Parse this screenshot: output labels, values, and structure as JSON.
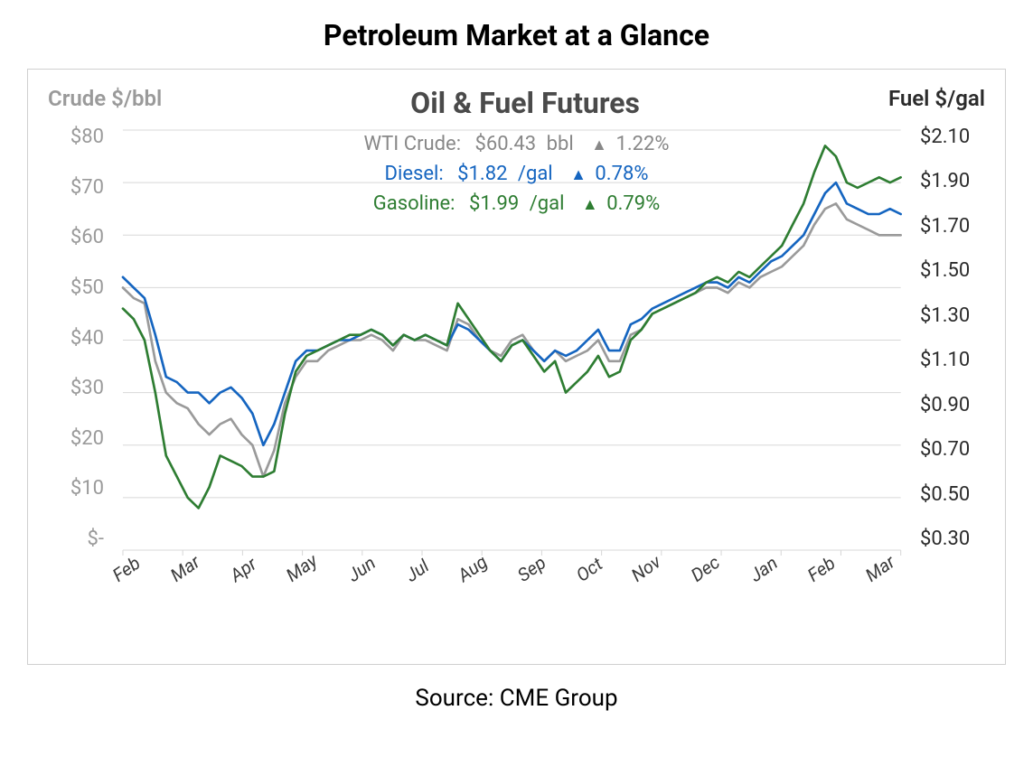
{
  "title": "Petroleum Market at a Glance",
  "source": "Source: CME Group",
  "chart": {
    "type": "line",
    "title": "Oil & Fuel Futures",
    "left_axis": {
      "label": "Crude $/bbl",
      "color": "#9a9a9a",
      "ticks": [
        "$80",
        "$70",
        "$60",
        "$50",
        "$40",
        "$30",
        "$20",
        "$10",
        "$-"
      ],
      "min": 0,
      "max": 80,
      "step": 10
    },
    "right_axis": {
      "label": "Fuel $/gal",
      "color": "#2b2b2b",
      "ticks": [
        "$2.10",
        "$1.90",
        "$1.70",
        "$1.50",
        "$1.30",
        "$1.10",
        "$0.90",
        "$0.70",
        "$0.50",
        "$0.30"
      ],
      "min": 0.3,
      "max": 2.1,
      "step": 0.2
    },
    "x_axis": {
      "ticks": [
        "Feb",
        "Mar",
        "Apr",
        "May",
        "Jun",
        "Jul",
        "Aug",
        "Sep",
        "Oct",
        "Nov",
        "Dec",
        "Jan",
        "Feb",
        "Mar"
      ],
      "color": "#3a3a3a"
    },
    "grid_color": "#d8d8d8",
    "background_color": "#ffffff",
    "border_color": "#d0d0d0",
    "line_width": 2.6,
    "series": {
      "wti": {
        "label": "WTI Crude:",
        "value": "$60.43",
        "unit": "bbl",
        "pct": "1.22%",
        "direction": "up",
        "color": "#9a9a9a",
        "data_left_axis": [
          50,
          48,
          47,
          36,
          30,
          28,
          27,
          24,
          22,
          24,
          25,
          22,
          20,
          14,
          19,
          28,
          33,
          36,
          36,
          38,
          39,
          40,
          40,
          41,
          40,
          38,
          41,
          40,
          40,
          39,
          38,
          44,
          43,
          40,
          38,
          37,
          40,
          41,
          38,
          36,
          38,
          36,
          37,
          38,
          40,
          36,
          36,
          41,
          42,
          45,
          46,
          47,
          48,
          49,
          50,
          50,
          49,
          51,
          50,
          52,
          53,
          54,
          56,
          58,
          62,
          65,
          66,
          63,
          62,
          61,
          60,
          60,
          60
        ]
      },
      "diesel": {
        "label": "Diesel:",
        "value": "$1.82",
        "unit": "/gal",
        "pct": "0.78%",
        "direction": "up",
        "color": "#1565c0",
        "data_left_axis": [
          52,
          50,
          48,
          41,
          33,
          32,
          30,
          30,
          28,
          30,
          31,
          29,
          26,
          20,
          24,
          30,
          36,
          38,
          38,
          39,
          40,
          40,
          41,
          42,
          41,
          39,
          41,
          40,
          41,
          40,
          39,
          43,
          42,
          40,
          38,
          36,
          39,
          40,
          38,
          36,
          38,
          37,
          38,
          40,
          42,
          38,
          38,
          43,
          44,
          46,
          47,
          48,
          49,
          50,
          51,
          51,
          50,
          52,
          51,
          53,
          55,
          56,
          58,
          60,
          64,
          68,
          70,
          66,
          65,
          64,
          64,
          65,
          64
        ]
      },
      "gasoline": {
        "label": "Gasoline:",
        "value": "$1.99",
        "unit": "/gal",
        "pct": "0.79%",
        "direction": "up",
        "color": "#2e7d32",
        "data_left_axis": [
          46,
          44,
          40,
          30,
          18,
          14,
          10,
          8,
          12,
          18,
          17,
          16,
          14,
          14,
          15,
          26,
          34,
          37,
          38,
          39,
          40,
          41,
          41,
          42,
          41,
          39,
          41,
          40,
          41,
          40,
          39,
          47,
          44,
          41,
          38,
          36,
          39,
          40,
          37,
          34,
          36,
          30,
          32,
          34,
          37,
          33,
          34,
          40,
          42,
          45,
          46,
          47,
          48,
          49,
          51,
          52,
          51,
          53,
          52,
          54,
          56,
          58,
          62,
          66,
          72,
          77,
          75,
          70,
          69,
          70,
          71,
          70,
          71
        ]
      }
    },
    "legend_fontsize": 22,
    "title_fontsize": 32
  }
}
